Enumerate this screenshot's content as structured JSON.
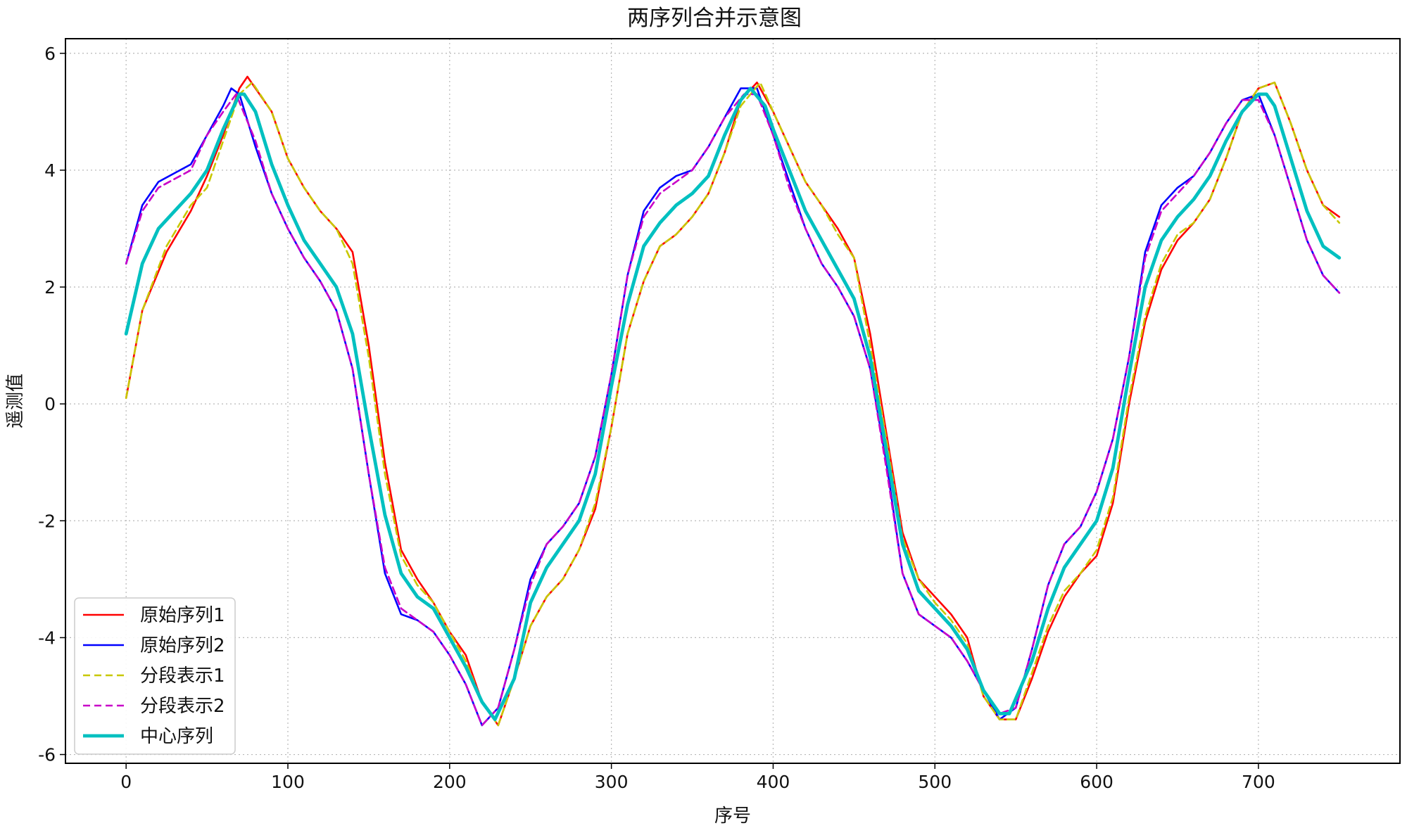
{
  "chart_data": {
    "type": "line",
    "title": "两序列合并示意图",
    "xlabel": "序号",
    "ylabel": "遥测值",
    "xlim": [
      -37.5,
      787.5
    ],
    "ylim": [
      -6.15,
      6.25
    ],
    "x_ticks": [
      0,
      100,
      200,
      300,
      400,
      500,
      600,
      700
    ],
    "y_ticks": [
      -6,
      -4,
      -2,
      0,
      2,
      4,
      6
    ],
    "y_tick_labels": [
      "-6",
      "-4",
      "-2",
      "0",
      "2",
      "4",
      "6"
    ],
    "grid": true,
    "legend_position": "lower-left",
    "series": [
      {
        "name": "原始序列1",
        "color": "#ff0000",
        "style": "solid",
        "x": [
          0,
          10,
          25,
          40,
          50,
          60,
          70,
          75,
          80,
          90,
          100,
          110,
          120,
          130,
          140,
          150,
          160,
          170,
          180,
          190,
          200,
          210,
          220,
          230,
          240,
          250,
          260,
          270,
          280,
          290,
          300,
          310,
          320,
          330,
          340,
          350,
          360,
          370,
          380,
          390,
          400,
          410,
          420,
          430,
          440,
          450,
          460,
          470,
          480,
          490,
          500,
          510,
          520,
          530,
          540,
          550,
          560,
          570,
          580,
          590,
          600,
          610,
          620,
          630,
          640,
          650,
          660,
          670,
          680,
          690,
          700,
          710,
          720,
          730,
          740,
          750
        ],
        "y": [
          0.1,
          1.6,
          2.6,
          3.3,
          3.9,
          4.6,
          5.4,
          5.6,
          5.4,
          5.0,
          4.2,
          3.7,
          3.3,
          3.0,
          2.6,
          1.0,
          -1.0,
          -2.5,
          -3.0,
          -3.4,
          -3.9,
          -4.3,
          -5.1,
          -5.5,
          -4.7,
          -3.8,
          -3.3,
          -3.0,
          -2.5,
          -1.8,
          -0.4,
          1.2,
          2.1,
          2.7,
          2.9,
          3.2,
          3.6,
          4.3,
          5.2,
          5.5,
          5.0,
          4.4,
          3.8,
          3.4,
          3.0,
          2.5,
          1.2,
          -0.5,
          -2.2,
          -3.0,
          -3.3,
          -3.6,
          -4.0,
          -5.0,
          -5.4,
          -5.4,
          -4.7,
          -3.9,
          -3.3,
          -2.9,
          -2.6,
          -1.7,
          0.0,
          1.4,
          2.3,
          2.8,
          3.1,
          3.5,
          4.2,
          5.0,
          5.4,
          5.5,
          4.8,
          4.0,
          3.4,
          3.2
        ]
      },
      {
        "name": "原始序列2",
        "color": "#0000ff",
        "style": "solid",
        "x": [
          0,
          10,
          20,
          40,
          50,
          60,
          65,
          70,
          80,
          90,
          100,
          110,
          120,
          130,
          140,
          150,
          160,
          170,
          180,
          190,
          200,
          210,
          220,
          230,
          240,
          250,
          260,
          270,
          280,
          290,
          300,
          310,
          320,
          330,
          340,
          350,
          360,
          370,
          380,
          390,
          400,
          410,
          420,
          430,
          440,
          450,
          460,
          470,
          480,
          490,
          500,
          510,
          520,
          530,
          540,
          550,
          560,
          570,
          580,
          590,
          600,
          610,
          620,
          630,
          640,
          650,
          660,
          670,
          680,
          690,
          700,
          710,
          720,
          730,
          740,
          750
        ],
        "y": [
          2.4,
          3.4,
          3.8,
          4.1,
          4.6,
          5.1,
          5.4,
          5.3,
          4.4,
          3.6,
          3.0,
          2.5,
          2.1,
          1.6,
          0.6,
          -1.2,
          -2.9,
          -3.6,
          -3.7,
          -3.9,
          -4.3,
          -4.8,
          -5.5,
          -5.2,
          -4.2,
          -3.0,
          -2.4,
          -2.1,
          -1.7,
          -0.9,
          0.5,
          2.2,
          3.3,
          3.7,
          3.9,
          4.0,
          4.4,
          4.9,
          5.4,
          5.4,
          4.6,
          3.8,
          3.0,
          2.4,
          2.0,
          1.5,
          0.6,
          -1.0,
          -2.9,
          -3.6,
          -3.8,
          -4.0,
          -4.4,
          -4.9,
          -5.4,
          -5.2,
          -4.2,
          -3.1,
          -2.4,
          -2.1,
          -1.5,
          -0.6,
          0.8,
          2.6,
          3.4,
          3.7,
          3.9,
          4.3,
          4.8,
          5.2,
          5.3,
          4.6,
          3.7,
          2.8,
          2.2,
          1.9
        ]
      },
      {
        "name": "分段表示1",
        "color": "#c8c800",
        "style": "dashed",
        "x": [
          0,
          10,
          25,
          40,
          50,
          60,
          70,
          78,
          90,
          100,
          110,
          120,
          130,
          140,
          150,
          160,
          170,
          180,
          190,
          200,
          210,
          220,
          230,
          240,
          250,
          260,
          270,
          280,
          290,
          300,
          310,
          320,
          330,
          340,
          350,
          360,
          370,
          380,
          392,
          400,
          410,
          420,
          430,
          440,
          450,
          460,
          470,
          480,
          490,
          500,
          510,
          520,
          530,
          540,
          550,
          560,
          570,
          580,
          590,
          600,
          610,
          620,
          630,
          640,
          650,
          660,
          670,
          680,
          690,
          700,
          710,
          720,
          730,
          740,
          750
        ],
        "y": [
          0.1,
          1.6,
          2.7,
          3.4,
          3.7,
          4.5,
          5.3,
          5.5,
          5.0,
          4.2,
          3.7,
          3.3,
          3.0,
          2.4,
          0.8,
          -1.2,
          -2.6,
          -3.1,
          -3.4,
          -3.9,
          -4.4,
          -5.1,
          -5.5,
          -4.7,
          -3.8,
          -3.3,
          -3.0,
          -2.5,
          -1.7,
          -0.4,
          1.2,
          2.1,
          2.7,
          2.9,
          3.2,
          3.6,
          4.3,
          5.1,
          5.5,
          5.0,
          4.4,
          3.8,
          3.4,
          2.9,
          2.5,
          1.0,
          -0.6,
          -2.3,
          -3.0,
          -3.4,
          -3.7,
          -4.1,
          -5.0,
          -5.4,
          -5.4,
          -4.6,
          -3.8,
          -3.2,
          -2.9,
          -2.5,
          -1.6,
          0.1,
          1.5,
          2.4,
          2.9,
          3.1,
          3.5,
          4.2,
          5.0,
          5.4,
          5.5,
          4.8,
          4.0,
          3.4,
          3.1
        ]
      },
      {
        "name": "分段表示2",
        "color": "#c800c8",
        "style": "dashed",
        "x": [
          0,
          10,
          20,
          40,
          50,
          60,
          68,
          80,
          90,
          100,
          110,
          120,
          130,
          140,
          150,
          160,
          170,
          180,
          190,
          200,
          210,
          220,
          230,
          240,
          250,
          260,
          270,
          280,
          290,
          300,
          310,
          320,
          330,
          340,
          350,
          360,
          370,
          382,
          390,
          400,
          410,
          420,
          430,
          440,
          450,
          460,
          470,
          480,
          490,
          500,
          510,
          520,
          530,
          540,
          550,
          560,
          570,
          580,
          590,
          600,
          610,
          620,
          630,
          640,
          650,
          660,
          670,
          680,
          690,
          700,
          710,
          720,
          730,
          740,
          750
        ],
        "y": [
          2.4,
          3.3,
          3.7,
          4.0,
          4.6,
          5.0,
          5.3,
          4.5,
          3.6,
          3.0,
          2.5,
          2.1,
          1.6,
          0.6,
          -1.2,
          -2.8,
          -3.5,
          -3.7,
          -3.9,
          -4.3,
          -4.8,
          -5.5,
          -5.2,
          -4.2,
          -3.1,
          -2.4,
          -2.1,
          -1.7,
          -0.9,
          0.5,
          2.2,
          3.2,
          3.6,
          3.8,
          4.0,
          4.4,
          4.9,
          5.3,
          5.3,
          4.6,
          3.7,
          3.0,
          2.4,
          2.0,
          1.5,
          0.6,
          -1.1,
          -2.9,
          -3.6,
          -3.8,
          -4.0,
          -4.4,
          -4.9,
          -5.3,
          -5.2,
          -4.2,
          -3.1,
          -2.4,
          -2.1,
          -1.5,
          -0.6,
          0.8,
          2.5,
          3.3,
          3.6,
          3.9,
          4.3,
          4.8,
          5.2,
          5.2,
          4.6,
          3.7,
          2.8,
          2.2,
          1.9
        ]
      },
      {
        "name": "中心序列",
        "color": "#00c0c0",
        "style": "solid-thick",
        "x": [
          0,
          10,
          20,
          30,
          40,
          50,
          60,
          70,
          73,
          80,
          90,
          100,
          110,
          120,
          130,
          140,
          150,
          160,
          170,
          180,
          190,
          200,
          210,
          220,
          228,
          240,
          250,
          260,
          270,
          280,
          290,
          300,
          310,
          320,
          330,
          340,
          350,
          360,
          370,
          380,
          386,
          395,
          400,
          410,
          420,
          430,
          440,
          450,
          460,
          470,
          480,
          490,
          500,
          510,
          520,
          530,
          540,
          546,
          560,
          570,
          580,
          590,
          600,
          610,
          620,
          630,
          640,
          650,
          660,
          670,
          680,
          690,
          700,
          705,
          710,
          720,
          730,
          740,
          750
        ],
        "y": [
          1.2,
          2.4,
          3.0,
          3.3,
          3.6,
          4.0,
          4.7,
          5.3,
          5.3,
          5.0,
          4.1,
          3.4,
          2.8,
          2.4,
          2.0,
          1.2,
          -0.4,
          -1.9,
          -2.9,
          -3.3,
          -3.5,
          -4.0,
          -4.5,
          -5.1,
          -5.4,
          -4.7,
          -3.4,
          -2.8,
          -2.4,
          -2.0,
          -1.2,
          0.3,
          1.7,
          2.7,
          3.1,
          3.4,
          3.6,
          3.9,
          4.6,
          5.2,
          5.4,
          5.1,
          4.7,
          4.0,
          3.3,
          2.8,
          2.3,
          1.8,
          0.8,
          -0.8,
          -2.4,
          -3.2,
          -3.5,
          -3.8,
          -4.2,
          -4.9,
          -5.3,
          -5.3,
          -4.4,
          -3.5,
          -2.8,
          -2.4,
          -2.0,
          -1.1,
          0.5,
          2.0,
          2.8,
          3.2,
          3.5,
          3.9,
          4.5,
          5.0,
          5.3,
          5.3,
          5.1,
          4.2,
          3.3,
          2.7,
          2.5
        ]
      }
    ]
  }
}
